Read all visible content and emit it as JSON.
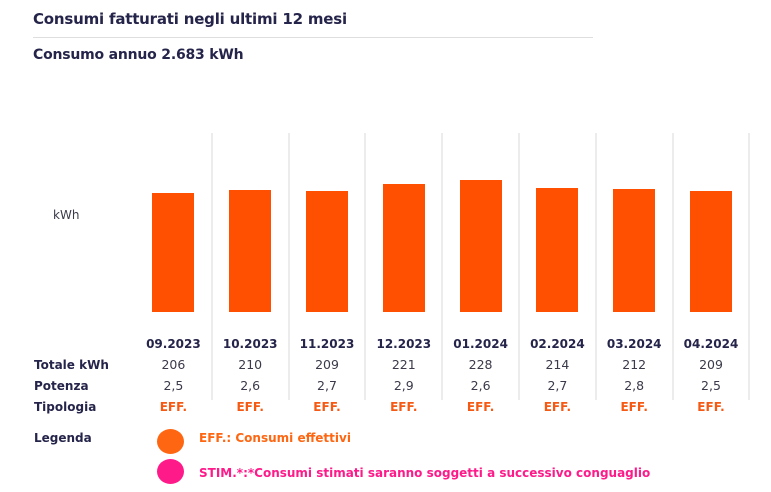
{
  "header": {
    "title": "Consumi fatturati negli ultimi 12 mesi",
    "subtitle": "Consumo annuo 2.683 kWh"
  },
  "colors": {
    "bar": "#fe5000",
    "eff": "#f45a14",
    "stim": "#ff1a8a",
    "text": "#25244a"
  },
  "row_labels": {
    "totale": "Totale kWh",
    "potenza": "Potenza",
    "tipologia": "Tipologia"
  },
  "legend": {
    "label": "Legenda",
    "items": [
      {
        "text": "EFF.: Consumi effettivi",
        "color": "#fe6611"
      },
      {
        "text": "STIM.*:*Consumi stimati saranno soggetti a successivo conguaglio",
        "color": "#ff1a8a"
      }
    ]
  },
  "chart_data": {
    "type": "bar",
    "title": "Consumi fatturati negli ultimi 12 mesi",
    "subtitle": "Consumo annuo 2.683 kWh",
    "xlabel": "",
    "ylabel": "kWh",
    "ylim": [
      0,
      228
    ],
    "grid": false,
    "categories": [
      "09.2023",
      "10.2023",
      "11.2023",
      "12.2023",
      "01.2024",
      "02.2024",
      "03.2024",
      "04.2024"
    ],
    "values": [
      206,
      210,
      209,
      221,
      228,
      214,
      212,
      209
    ],
    "potenza": [
      "2,5",
      "2,6",
      "2,7",
      "2,9",
      "2,6",
      "2,7",
      "2,8",
      "2,5"
    ],
    "tipologia": [
      "EFF.",
      "EFF.",
      "EFF.",
      "EFF.",
      "EFF.",
      "EFF.",
      "EFF.",
      "EFF."
    ],
    "totale_labels": [
      "206",
      "210",
      "209",
      "221",
      "228",
      "214",
      "212",
      "209"
    ]
  }
}
